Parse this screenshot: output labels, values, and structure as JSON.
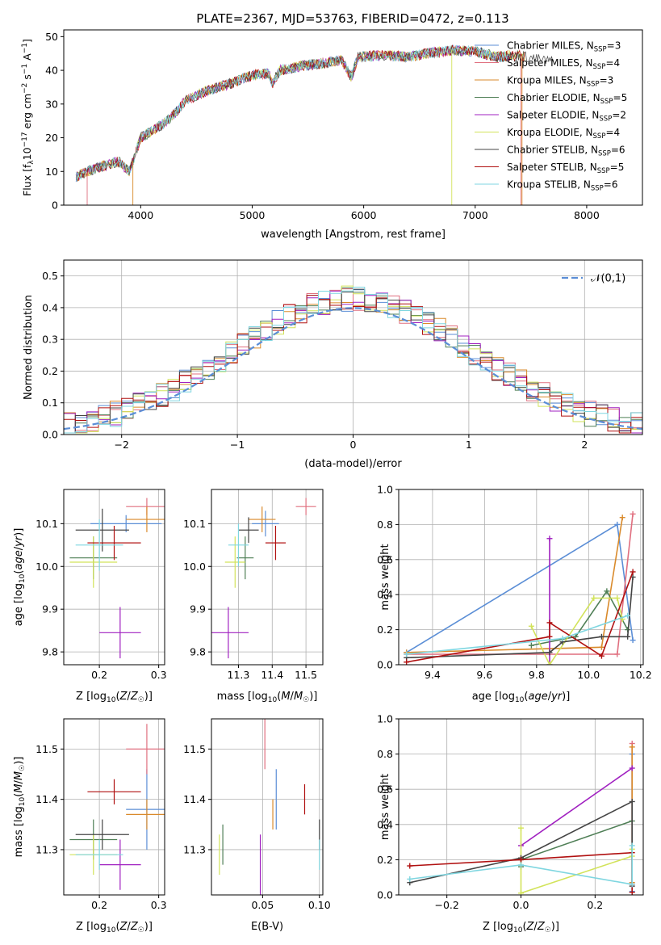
{
  "figure_title": "PLATE=2367, MJD=53763, FIBERID=0472, z=0.113",
  "colors": {
    "Chabrier MILES": "#5b8ed6",
    "Salpeter MILES": "#e06f7f",
    "Kroupa MILES": "#d98a2b",
    "Chabrier ELODIE": "#4f7f56",
    "Salpeter ELODIE": "#a020c0",
    "Kroupa ELODIE": "#d2e35a",
    "Chabrier STELIB": "#444444",
    "Salpeter STELIB": "#b01010",
    "Kroupa STELIB": "#7fd6e0",
    "gauss": "#5b8ed6"
  },
  "models": [
    {
      "name": "Chabrier MILES",
      "nssp": "3"
    },
    {
      "name": "Salpeter MILES",
      "nssp": "4"
    },
    {
      "name": "Kroupa MILES",
      "nssp": "3"
    },
    {
      "name": "Chabrier ELODIE",
      "nssp": "5"
    },
    {
      "name": "Salpeter ELODIE",
      "nssp": "2"
    },
    {
      "name": "Kroupa ELODIE",
      "nssp": "4"
    },
    {
      "name": "Chabrier STELIB",
      "nssp": "6"
    },
    {
      "name": "Salpeter STELIB",
      "nssp": "5"
    },
    {
      "name": "Kroupa STELIB",
      "nssp": "6"
    }
  ],
  "chart_data": [
    {
      "id": "spectrum",
      "type": "line",
      "xlabel": "wavelength [Angstrom, rest frame]",
      "ylabel": "Flux [f_λ 10^-17 erg cm^-2 s^-1 A^-1]",
      "xlim": [
        3310,
        8500
      ],
      "ylim": [
        0,
        52
      ],
      "xticks": [
        4000,
        5000,
        6000,
        7000,
        8000
      ],
      "yticks": [
        0,
        10,
        20,
        30,
        40,
        50
      ],
      "continuum": [
        [
          3420,
          8.5
        ],
        [
          3600,
          11
        ],
        [
          3800,
          13
        ],
        [
          3900,
          10
        ],
        [
          3960,
          16
        ],
        [
          4000,
          20
        ],
        [
          4100,
          22
        ],
        [
          4200,
          24
        ],
        [
          4300,
          27
        ],
        [
          4400,
          31
        ],
        [
          4600,
          34
        ],
        [
          4800,
          36
        ],
        [
          5000,
          38.5
        ],
        [
          5150,
          39
        ],
        [
          5180,
          36
        ],
        [
          5250,
          40
        ],
        [
          5400,
          41
        ],
        [
          5600,
          42
        ],
        [
          5800,
          43
        ],
        [
          5890,
          38
        ],
        [
          5950,
          44
        ],
        [
          6200,
          44.5
        ],
        [
          6400,
          44
        ],
        [
          6563,
          45
        ],
        [
          6700,
          45.5
        ],
        [
          6800,
          46
        ],
        [
          7000,
          45.5
        ],
        [
          7200,
          44
        ],
        [
          7400,
          44.5
        ],
        [
          7600,
          43
        ],
        [
          8000,
          42
        ],
        [
          8400,
          41
        ]
      ],
      "legend_position": "upper right",
      "grid": false
    },
    {
      "id": "residuals",
      "type": "histogram",
      "xlabel": "(data-model)/error",
      "ylabel": "Normed distribution",
      "xlim": [
        -2.5,
        2.5
      ],
      "ylim": [
        0,
        0.55
      ],
      "xticks": [
        -2,
        -1,
        0,
        1,
        2
      ],
      "yticks": [
        0.0,
        0.1,
        0.2,
        0.3,
        0.4,
        0.5
      ],
      "bin_width": 0.1,
      "bin_start": -2.5,
      "reference_label": "𝒩(0,1)",
      "legend_position": "upper right",
      "grid": true
    },
    {
      "id": "z_age",
      "type": "errorbar",
      "xlabel": "Z [log10(Z/Z☉)]",
      "ylabel": "age [log10(age/yr)]",
      "xlim": [
        0.14,
        0.31
      ],
      "ylim": [
        9.77,
        10.18
      ],
      "xticks": [
        0.2,
        0.3
      ],
      "xticklabels": [
        "0.2",
        "0.3"
      ],
      "yticks": [
        9.8,
        9.9,
        10.0,
        10.1
      ],
      "yticklabels": [
        "9.8",
        "9.9",
        "10.0",
        "10.1"
      ],
      "points": [
        {
          "model": "Chabrier MILES",
          "x": 0.245,
          "y": 10.1,
          "xerr": 0.06,
          "yerr": 0.02
        },
        {
          "model": "Salpeter MILES",
          "x": 0.28,
          "y": 10.14,
          "xerr": 0.035,
          "yerr": 0.02
        },
        {
          "model": "Kroupa MILES",
          "x": 0.28,
          "y": 10.11,
          "xerr": 0.035,
          "yerr": 0.03
        },
        {
          "model": "Chabrier ELODIE",
          "x": 0.19,
          "y": 10.02,
          "xerr": 0.04,
          "yerr": 0.05
        },
        {
          "model": "Salpeter ELODIE",
          "x": 0.235,
          "y": 9.845,
          "xerr": 0.035,
          "yerr": 0.06
        },
        {
          "model": "Kroupa ELODIE",
          "x": 0.19,
          "y": 10.01,
          "xerr": 0.04,
          "yerr": 0.06
        },
        {
          "model": "Chabrier STELIB",
          "x": 0.205,
          "y": 10.085,
          "xerr": 0.045,
          "yerr": 0.05
        },
        {
          "model": "Salpeter STELIB",
          "x": 0.225,
          "y": 10.055,
          "xerr": 0.045,
          "yerr": 0.04
        },
        {
          "model": "Kroupa STELIB",
          "x": 0.2,
          "y": 10.05,
          "xerr": 0.04,
          "yerr": 0.06
        }
      ],
      "grid": true
    },
    {
      "id": "mass_age",
      "type": "errorbar",
      "xlabel": "mass [log10(M/M☉)]",
      "ylabel": "",
      "xlim": [
        11.22,
        11.55
      ],
      "ylim": [
        9.77,
        10.18
      ],
      "xticks": [
        11.3,
        11.4,
        11.5
      ],
      "xticklabels": [
        "11.3",
        "11.4",
        "11.5"
      ],
      "yticks": [
        9.8,
        9.9,
        10.0,
        10.1
      ],
      "yticklabels": [
        "9.8",
        "9.9",
        "10.0",
        "10.1"
      ],
      "points": [
        {
          "model": "Chabrier MILES",
          "x": 11.38,
          "y": 10.1,
          "xerr": 0.04,
          "yerr": 0.03
        },
        {
          "model": "Salpeter MILES",
          "x": 11.5,
          "y": 10.14,
          "xerr": 0.03,
          "yerr": 0.02
        },
        {
          "model": "Kroupa MILES",
          "x": 11.37,
          "y": 10.11,
          "xerr": 0.04,
          "yerr": 0.03
        },
        {
          "model": "Chabrier ELODIE",
          "x": 11.32,
          "y": 10.02,
          "xerr": 0.025,
          "yerr": 0.05
        },
        {
          "model": "Salpeter ELODIE",
          "x": 11.27,
          "y": 9.845,
          "xerr": 0.06,
          "yerr": 0.06
        },
        {
          "model": "Kroupa ELODIE",
          "x": 11.29,
          "y": 10.01,
          "xerr": 0.03,
          "yerr": 0.06
        },
        {
          "model": "Chabrier STELIB",
          "x": 11.33,
          "y": 10.085,
          "xerr": 0.03,
          "yerr": 0.03
        },
        {
          "model": "Salpeter STELIB",
          "x": 11.41,
          "y": 10.055,
          "xerr": 0.03,
          "yerr": 0.04
        },
        {
          "model": "Kroupa STELIB",
          "x": 11.3,
          "y": 10.05,
          "xerr": 0.03,
          "yerr": 0.05
        }
      ],
      "grid": true
    },
    {
      "id": "age_weight",
      "type": "line",
      "xlabel": "age [log10(age/yr)]",
      "ylabel": "mass weight",
      "xlim": [
        9.27,
        10.21
      ],
      "ylim": [
        0,
        1.0
      ],
      "xticks": [
        9.4,
        9.6,
        9.8,
        10.0,
        10.2
      ],
      "xticklabels": [
        "9.4",
        "9.6",
        "9.8",
        "10.0",
        "10.2"
      ],
      "yticks": [
        0.0,
        0.2,
        0.4,
        0.6,
        0.8,
        1.0
      ],
      "yticklabels": [
        "0.0",
        "0.2",
        "0.4",
        "0.6",
        "0.8",
        "1.0"
      ],
      "series": [
        {
          "model": "Chabrier MILES",
          "points": [
            [
              9.3,
              0.07
            ],
            [
              10.11,
              0.8
            ],
            [
              10.17,
              0.14
            ]
          ]
        },
        {
          "model": "Salpeter MILES",
          "points": [
            [
              9.3,
              0.06
            ],
            [
              10.11,
              0.06
            ],
            [
              10.17,
              0.86
            ]
          ]
        },
        {
          "model": "Kroupa MILES",
          "points": [
            [
              9.3,
              0.07
            ],
            [
              10.05,
              0.1
            ],
            [
              10.13,
              0.84
            ]
          ]
        },
        {
          "model": "Chabrier ELODIE",
          "points": [
            [
              9.78,
              0.11
            ],
            [
              9.95,
              0.16
            ],
            [
              10.07,
              0.42
            ],
            [
              10.15,
              0.2
            ]
          ]
        },
        {
          "model": "Salpeter ELODIE",
          "points": [
            [
              9.85,
              0.0
            ],
            [
              9.85,
              0.72
            ]
          ]
        },
        {
          "model": "Kroupa ELODIE",
          "points": [
            [
              9.78,
              0.22
            ],
            [
              9.85,
              0.0
            ],
            [
              10.02,
              0.38
            ],
            [
              10.11,
              0.38
            ],
            [
              10.13,
              0.26
            ]
          ]
        },
        {
          "model": "Chabrier STELIB",
          "points": [
            [
              9.3,
              0.04
            ],
            [
              9.85,
              0.07
            ],
            [
              9.9,
              0.13
            ],
            [
              10.05,
              0.16
            ],
            [
              10.15,
              0.16
            ],
            [
              10.17,
              0.5
            ]
          ]
        },
        {
          "model": "Salpeter STELIB",
          "points": [
            [
              9.3,
              0.015
            ],
            [
              9.85,
              0.16
            ],
            [
              9.85,
              0.24
            ],
            [
              10.05,
              0.05
            ],
            [
              10.17,
              0.53
            ]
          ]
        },
        {
          "model": "Kroupa STELIB",
          "points": [
            [
              9.3,
              0.06
            ],
            [
              9.9,
              0.15
            ],
            [
              10.15,
              0.28
            ]
          ]
        }
      ],
      "grid": true
    },
    {
      "id": "z_mass",
      "type": "errorbar",
      "xlabel": "Z [log10(Z/Z☉)]",
      "ylabel": "mass [log10(M/M☉)]",
      "xlim": [
        0.14,
        0.31
      ],
      "ylim": [
        11.21,
        11.56
      ],
      "xticks": [
        0.2,
        0.3
      ],
      "xticklabels": [
        "0.2",
        "0.3"
      ],
      "yticks": [
        11.3,
        11.4,
        11.5
      ],
      "yticklabels": [
        "11.3",
        "11.4",
        "11.5"
      ],
      "points": [
        {
          "model": "Chabrier MILES",
          "x": 0.28,
          "y": 11.38,
          "xerr": 0.035,
          "yerr": 0.08
        },
        {
          "model": "Salpeter MILES",
          "x": 0.28,
          "y": 11.5,
          "xerr": 0.035,
          "yerr": 0.05
        },
        {
          "model": "Kroupa MILES",
          "x": 0.28,
          "y": 11.37,
          "xerr": 0.035,
          "yerr": 0.03
        },
        {
          "model": "Chabrier ELODIE",
          "x": 0.19,
          "y": 11.32,
          "xerr": 0.04,
          "yerr": 0.04
        },
        {
          "model": "Salpeter ELODIE",
          "x": 0.235,
          "y": 11.27,
          "xerr": 0.035,
          "yerr": 0.05
        },
        {
          "model": "Kroupa ELODIE",
          "x": 0.19,
          "y": 11.29,
          "xerr": 0.04,
          "yerr": 0.04
        },
        {
          "model": "Chabrier STELIB",
          "x": 0.205,
          "y": 11.33,
          "xerr": 0.045,
          "yerr": 0.03
        },
        {
          "model": "Salpeter STELIB",
          "x": 0.225,
          "y": 11.415,
          "xerr": 0.045,
          "yerr": 0.025
        },
        {
          "model": "Kroupa STELIB",
          "x": 0.2,
          "y": 11.29,
          "xerr": 0.04,
          "yerr": 0.03
        }
      ],
      "grid": true
    },
    {
      "id": "ebv_mass",
      "type": "errorbar",
      "xlabel": "E(B-V)",
      "ylabel": "",
      "xlim": [
        0.005,
        0.103
      ],
      "ylim": [
        11.21,
        11.56
      ],
      "xticks": [
        0.05,
        0.1
      ],
      "xticklabels": [
        "0.05",
        "0.10"
      ],
      "yticks": [
        11.3,
        11.4,
        11.5
      ],
      "yticklabels": [
        "11.3",
        "11.4",
        "11.5"
      ],
      "points": [
        {
          "model": "Chabrier MILES",
          "x": 0.062,
          "y": 11.4,
          "xerr": 0,
          "yerr": 0.06
        },
        {
          "model": "Salpeter MILES",
          "x": 0.052,
          "y": 11.51,
          "xerr": 0,
          "yerr": 0.05
        },
        {
          "model": "Kroupa MILES",
          "x": 0.059,
          "y": 11.37,
          "xerr": 0,
          "yerr": 0.03
        },
        {
          "model": "Chabrier ELODIE",
          "x": 0.015,
          "y": 11.31,
          "xerr": 0,
          "yerr": 0.04
        },
        {
          "model": "Salpeter ELODIE",
          "x": 0.048,
          "y": 11.27,
          "xerr": 0,
          "yerr": 0.06
        },
        {
          "model": "Kroupa ELODIE",
          "x": 0.012,
          "y": 11.29,
          "xerr": 0,
          "yerr": 0.04
        },
        {
          "model": "Chabrier STELIB",
          "x": 0.1,
          "y": 11.33,
          "xerr": 0,
          "yerr": 0.03
        },
        {
          "model": "Salpeter STELIB",
          "x": 0.087,
          "y": 11.4,
          "xerr": 0,
          "yerr": 0.03
        },
        {
          "model": "Kroupa STELIB",
          "x": 0.1,
          "y": 11.29,
          "xerr": 0,
          "yerr": 0.03
        }
      ],
      "grid": true
    },
    {
      "id": "z_weight",
      "type": "line",
      "xlabel": "Z [log10(Z/Z☉)]",
      "ylabel": "mass weight",
      "xlim": [
        -0.33,
        0.33
      ],
      "ylim": [
        0,
        1.0
      ],
      "xticks": [
        -0.2,
        0.0,
        0.2
      ],
      "xticklabels": [
        "−0.2",
        "0.0",
        "0.2"
      ],
      "yticks": [
        0.0,
        0.2,
        0.4,
        0.6,
        0.8,
        1.0
      ],
      "yticklabels": [
        "0.0",
        "0.2",
        "0.4",
        "0.6",
        "0.8",
        "1.0"
      ],
      "series": [
        {
          "model": "Chabrier MILES",
          "points": [
            [
              0.3,
              0.02
            ],
            [
              0.3,
              0.8
            ]
          ]
        },
        {
          "model": "Salpeter MILES",
          "points": [
            [
              0.3,
              0.06
            ],
            [
              0.3,
              0.86
            ]
          ]
        },
        {
          "model": "Kroupa MILES",
          "points": [
            [
              0.3,
              0.07
            ],
            [
              0.3,
              0.84
            ]
          ]
        },
        {
          "model": "Chabrier ELODIE",
          "points": [
            [
              0.0,
              0.16
            ],
            [
              0.0,
              0.2
            ],
            [
              0.3,
              0.42
            ]
          ]
        },
        {
          "model": "Salpeter ELODIE",
          "points": [
            [
              0.0,
              0.28
            ],
            [
              0.3,
              0.72
            ]
          ]
        },
        {
          "model": "Kroupa ELODIE",
          "points": [
            [
              0.0,
              0.38
            ],
            [
              0.0,
              0.01
            ],
            [
              0.3,
              0.22
            ],
            [
              0.3,
              0.26
            ]
          ]
        },
        {
          "model": "Chabrier STELIB",
          "points": [
            [
              -0.3,
              0.07
            ],
            [
              0.0,
              0.21
            ],
            [
              0.3,
              0.53
            ],
            [
              0.3,
              0.05
            ]
          ]
        },
        {
          "model": "Salpeter STELIB",
          "points": [
            [
              -0.3,
              0.165
            ],
            [
              0.0,
              0.2
            ],
            [
              0.3,
              0.24
            ],
            [
              0.3,
              0.015
            ]
          ]
        },
        {
          "model": "Kroupa STELIB",
          "points": [
            [
              -0.3,
              0.09
            ],
            [
              0.0,
              0.17
            ],
            [
              0.3,
              0.06
            ],
            [
              0.3,
              0.28
            ]
          ]
        }
      ],
      "grid": true
    }
  ]
}
